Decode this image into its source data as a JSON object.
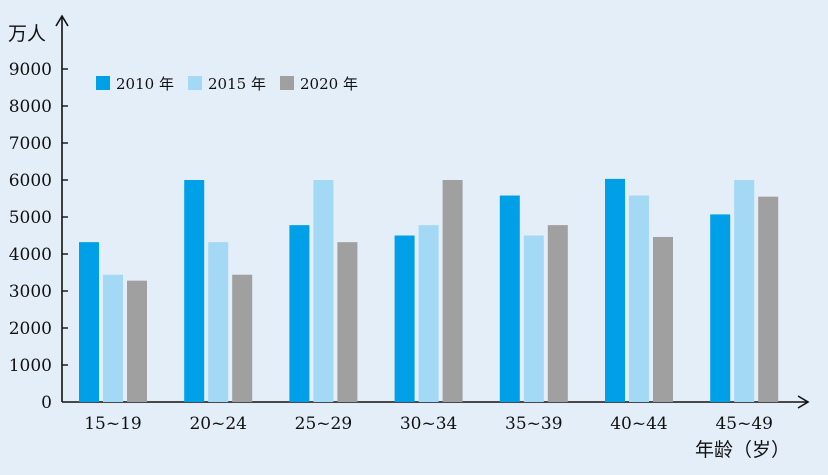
{
  "chart_data": {
    "type": "bar",
    "ylabel": "万人",
    "xlabel": "年龄（岁）",
    "categories": [
      "15~19",
      "20~24",
      "25~29",
      "30~34",
      "35~39",
      "40~44",
      "45~49"
    ],
    "series": [
      {
        "name": "2010 年",
        "color": "#00a0e9",
        "values": [
          4320,
          6000,
          4780,
          4500,
          5580,
          6030,
          5070
        ]
      },
      {
        "name": "2015 年",
        "color": "#a3d9f5",
        "values": [
          3440,
          4320,
          6000,
          4780,
          4500,
          5580,
          6000
        ]
      },
      {
        "name": "2020 年",
        "color": "#a0a0a0",
        "values": [
          3280,
          3440,
          4320,
          6000,
          4780,
          4460,
          5550
        ]
      }
    ],
    "yticks": [
      0,
      1000,
      2000,
      3000,
      4000,
      5000,
      6000,
      7000,
      8000,
      9000
    ],
    "ylim": [
      0,
      9000
    ],
    "legend_position": "top-left",
    "grid": false
  }
}
